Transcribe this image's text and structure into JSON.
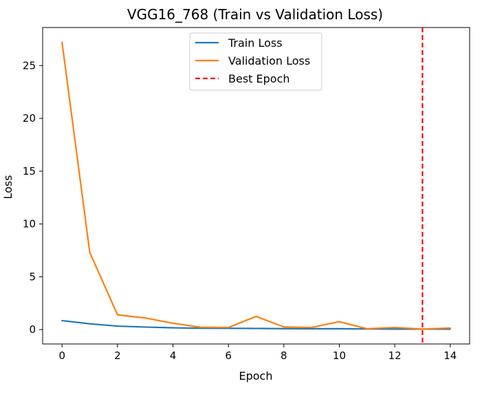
{
  "chart_data": {
    "type": "line",
    "title": "VGG16_768 (Train vs Validation Loss)",
    "xlabel": "Epoch",
    "ylabel": "Loss",
    "xlim": [
      -0.7,
      14.7
    ],
    "ylim": [
      -1.36,
      28.6
    ],
    "xticks": [
      0,
      2,
      4,
      6,
      8,
      10,
      12,
      14
    ],
    "yticks": [
      0,
      5,
      10,
      15,
      20,
      25
    ],
    "grid": false,
    "legend_position": "top-center",
    "x": [
      0,
      1,
      2,
      3,
      4,
      5,
      6,
      7,
      8,
      9,
      10,
      11,
      12,
      13,
      14
    ],
    "series": [
      {
        "name": "Train Loss",
        "color": "#1f77b4",
        "style": "solid",
        "values": [
          0.85,
          0.55,
          0.33,
          0.24,
          0.17,
          0.13,
          0.12,
          0.11,
          0.09,
          0.08,
          0.08,
          0.06,
          0.05,
          0.05,
          0.05
        ]
      },
      {
        "name": "Validation Loss",
        "color": "#ff7f0e",
        "style": "solid",
        "values": [
          27.2,
          7.3,
          1.4,
          1.1,
          0.6,
          0.22,
          0.2,
          1.25,
          0.25,
          0.2,
          0.75,
          0.08,
          0.2,
          0.05,
          0.15
        ]
      }
    ],
    "markers": [
      {
        "name": "Best Epoch",
        "type": "vline",
        "x": 13,
        "color": "#ff0000",
        "style": "dashed"
      }
    ]
  }
}
